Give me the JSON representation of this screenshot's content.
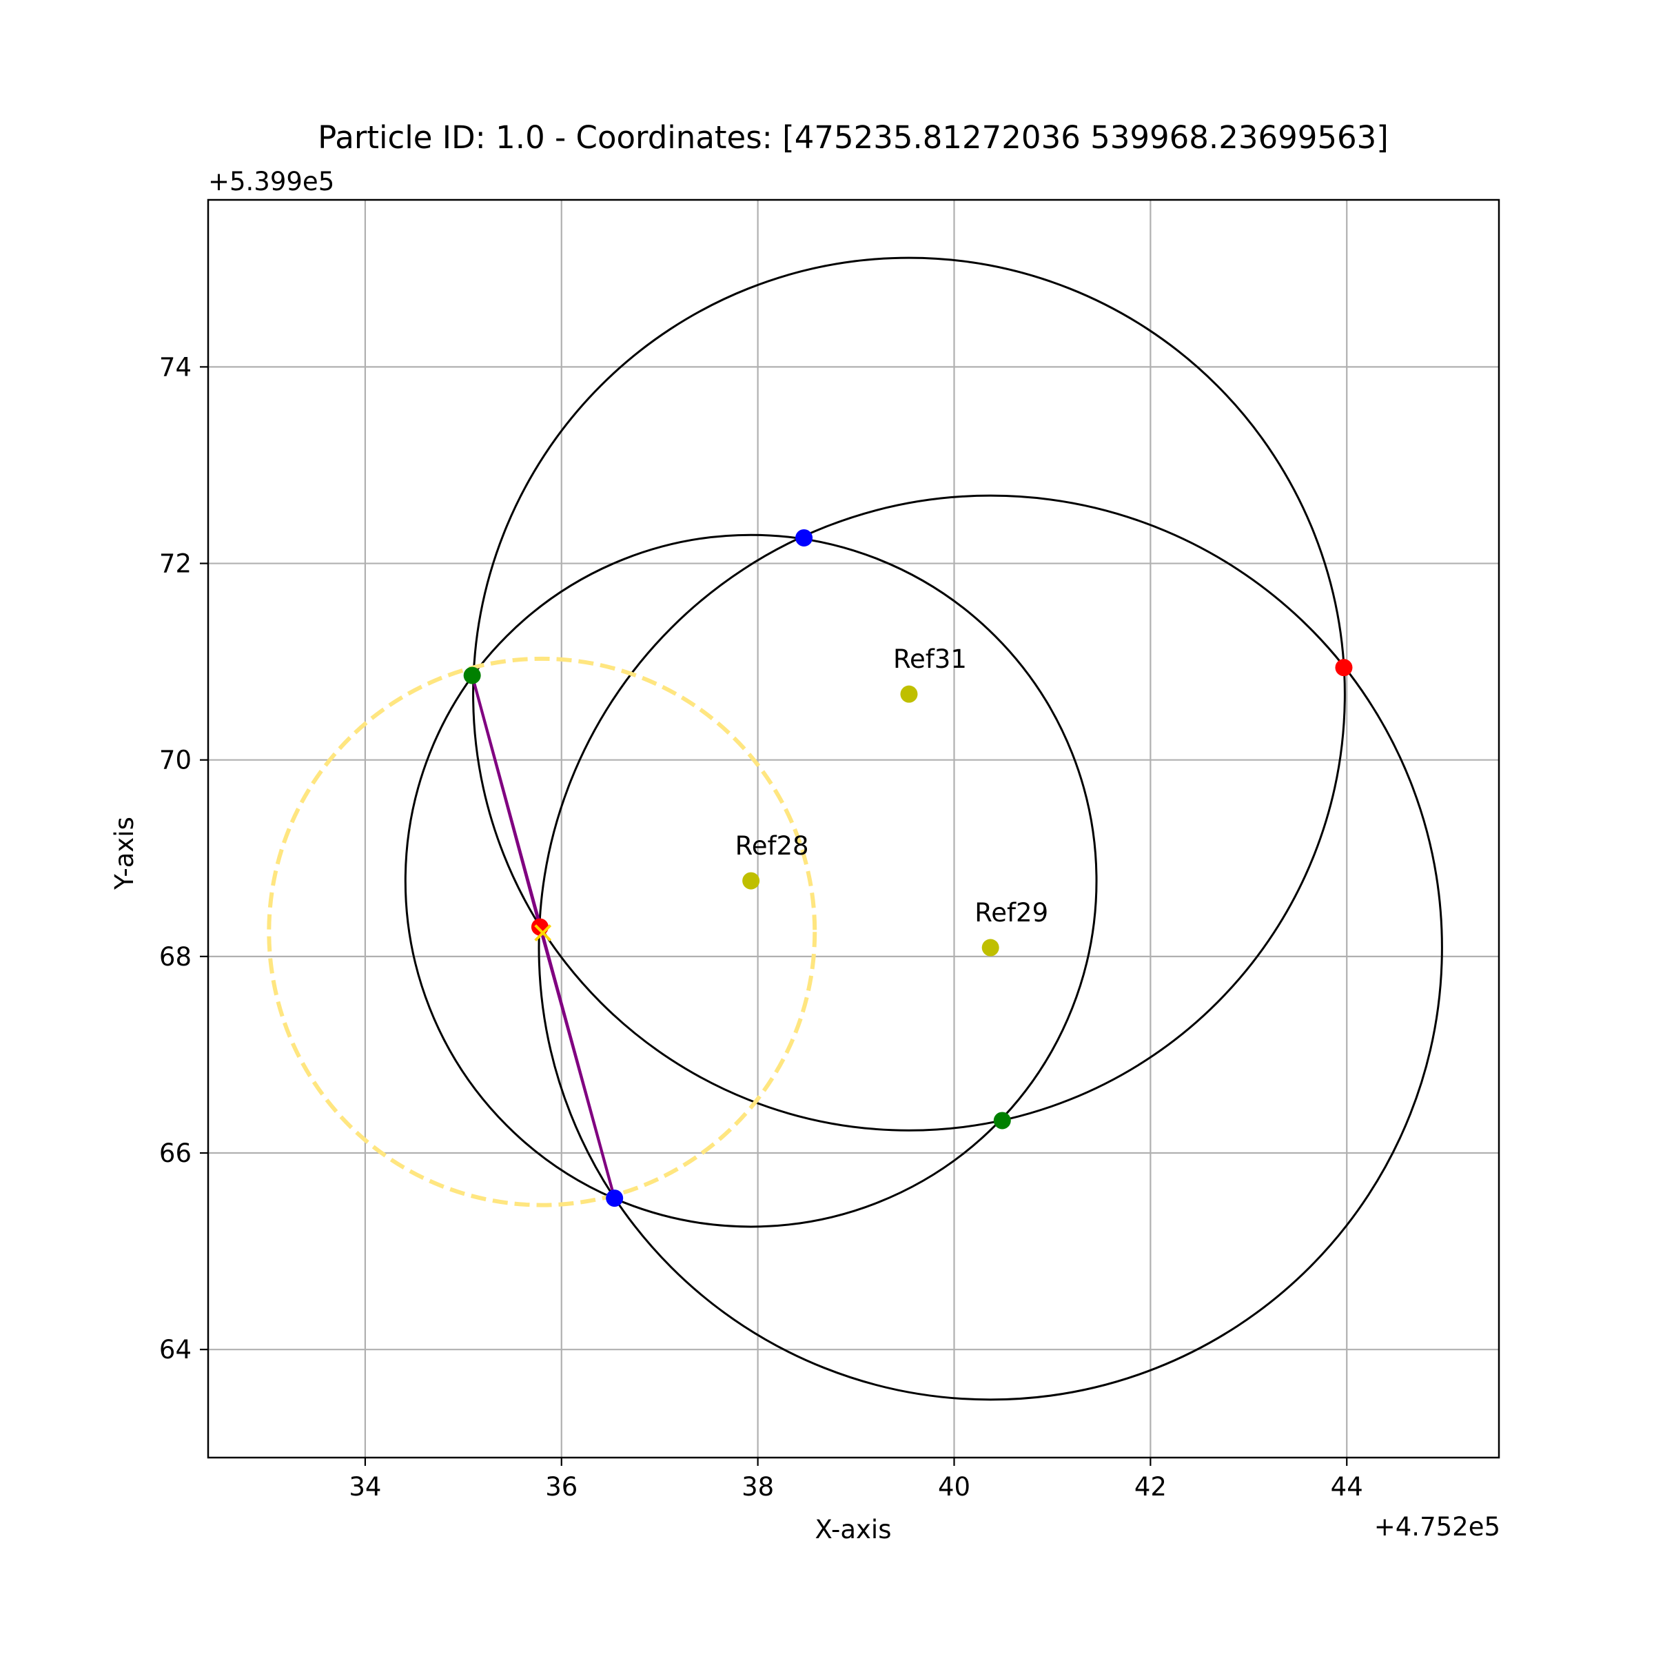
{
  "chart_data": {
    "type": "scatter",
    "title": "Particle ID: 1.0 - Coordinates: [475235.81272036 539968.23699563]",
    "xlabel": "X-axis",
    "ylabel": "Y-axis",
    "x_offset_label": "+4.752e5",
    "y_offset_label": "+5.399e5",
    "xlim": [
      32.4,
      45.55
    ],
    "ylim": [
      62.9,
      75.7
    ],
    "xticks": [
      34,
      36,
      38,
      40,
      42,
      44
    ],
    "yticks": [
      64,
      66,
      68,
      70,
      72,
      74
    ],
    "grid": true,
    "reference_points": [
      {
        "name": "Ref28",
        "x": 37.93,
        "y": 68.77
      },
      {
        "name": "Ref29",
        "x": 40.37,
        "y": 68.09
      },
      {
        "name": "Ref31",
        "x": 39.54,
        "y": 70.67
      }
    ],
    "circles": [
      {
        "cx": 37.93,
        "cy": 68.77,
        "r": 3.52,
        "color": "#000000",
        "style": "solid"
      },
      {
        "cx": 40.37,
        "cy": 68.09,
        "r": 4.6,
        "color": "#000000",
        "style": "solid"
      },
      {
        "cx": 39.54,
        "cy": 70.67,
        "r": 4.44,
        "color": "#000000",
        "style": "solid"
      },
      {
        "cx": 35.8,
        "cy": 68.25,
        "r": 2.78,
        "color": "#ffe680",
        "style": "dashed"
      }
    ],
    "intersection_points": [
      {
        "x": 38.47,
        "y": 72.26,
        "color": "#0000ff"
      },
      {
        "x": 36.54,
        "y": 65.54,
        "color": "#0000ff"
      },
      {
        "x": 43.97,
        "y": 70.94,
        "color": "#ff0000"
      },
      {
        "x": 35.78,
        "y": 68.3,
        "color": "#ff0000"
      },
      {
        "x": 35.09,
        "y": 70.86,
        "color": "#008000"
      },
      {
        "x": 40.49,
        "y": 66.33,
        "color": "#008000"
      }
    ],
    "triangle": {
      "points": [
        [
          35.09,
          70.86
        ],
        [
          35.78,
          68.3
        ],
        [
          36.54,
          65.54
        ]
      ],
      "color": "#800080"
    },
    "estimate": {
      "x": 35.81,
      "y": 68.24,
      "marker": "x",
      "color": "#ffd700"
    },
    "colors": {
      "reference": "#bfbf00",
      "grid": "#b0b0b0",
      "circle": "#000000",
      "estimate_circle": "#ffe680",
      "triangle": "#800080"
    }
  }
}
